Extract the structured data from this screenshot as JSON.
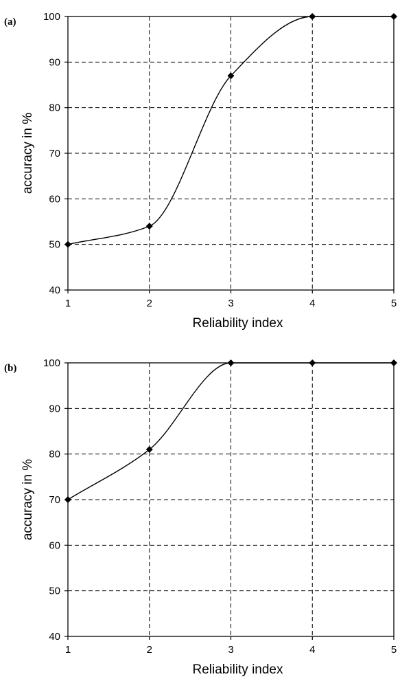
{
  "chart_data": [
    {
      "type": "line",
      "panel_label": "(a)",
      "xlabel": "Reliability index",
      "ylabel": "accuracy in %",
      "x": [
        1,
        2,
        3,
        4,
        5
      ],
      "y": [
        50,
        54,
        87,
        100,
        100
      ],
      "xlim": [
        1,
        5
      ],
      "ylim": [
        40,
        100
      ],
      "xticks": [
        "1",
        "2",
        "3",
        "4",
        "5"
      ],
      "yticks": [
        "40",
        "50",
        "60",
        "70",
        "80",
        "90",
        "100"
      ],
      "grid": true,
      "line_style": "smoothed",
      "marker": "diamond"
    },
    {
      "type": "line",
      "panel_label": "(b)",
      "xlabel": "Reliability index",
      "ylabel": "accuracy in %",
      "x": [
        1,
        2,
        3,
        4,
        5
      ],
      "y": [
        70,
        81,
        100,
        100,
        100
      ],
      "xlim": [
        1,
        5
      ],
      "ylim": [
        40,
        100
      ],
      "xticks": [
        "1",
        "2",
        "3",
        "4",
        "5"
      ],
      "yticks": [
        "40",
        "50",
        "60",
        "70",
        "80",
        "90",
        "100"
      ],
      "grid": true,
      "line_style": "smoothed",
      "marker": "diamond"
    }
  ]
}
